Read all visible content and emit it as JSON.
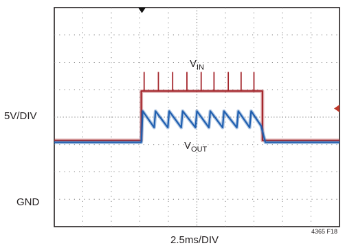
{
  "chart_data": {
    "type": "line",
    "title": "",
    "y_scale_label": "5V/DIV",
    "ground_label": "GND",
    "x_scale_label": "2.5ms/DIV",
    "figure_id": "4365 F18",
    "grid": true,
    "x_divisions": 10,
    "y_divisions": 8,
    "xlim_div": [
      0,
      10
    ],
    "ylim_div": [
      0,
      8
    ],
    "ground_level_div": 0.6,
    "trigger_marker_div": 5,
    "series": [
      {
        "name": "V_IN",
        "label_main": "V",
        "label_sub": "IN",
        "color": "#a4262c",
        "points_div": [
          [
            0,
            3.15
          ],
          [
            3.05,
            3.15
          ],
          [
            3.05,
            4.95
          ],
          [
            7.3,
            4.95
          ],
          [
            7.3,
            3.15
          ],
          [
            10,
            3.15
          ]
        ],
        "spikes_x_div": [
          3.15,
          3.65,
          4.15,
          4.65,
          5.15,
          5.6,
          6.1,
          6.55,
          7.0
        ],
        "spike_top_div": 5.65
      },
      {
        "name": "V_OUT",
        "label_main": "V",
        "label_sub": "OUT",
        "color": "#1f5fb0",
        "points_div": [
          [
            0,
            3.08
          ],
          [
            3.05,
            3.08
          ],
          [
            3.1,
            4.22
          ],
          [
            3.5,
            3.62
          ],
          [
            3.55,
            4.22
          ],
          [
            3.98,
            3.62
          ],
          [
            4.03,
            4.22
          ],
          [
            4.45,
            3.62
          ],
          [
            4.5,
            4.22
          ],
          [
            4.95,
            3.62
          ],
          [
            5.0,
            4.22
          ],
          [
            5.42,
            3.62
          ],
          [
            5.47,
            4.22
          ],
          [
            5.9,
            3.62
          ],
          [
            5.95,
            4.22
          ],
          [
            6.4,
            3.62
          ],
          [
            6.45,
            4.22
          ],
          [
            6.85,
            3.62
          ],
          [
            6.9,
            4.22
          ],
          [
            7.25,
            3.68
          ],
          [
            7.4,
            3.08
          ],
          [
            10,
            3.08
          ]
        ]
      }
    ]
  }
}
